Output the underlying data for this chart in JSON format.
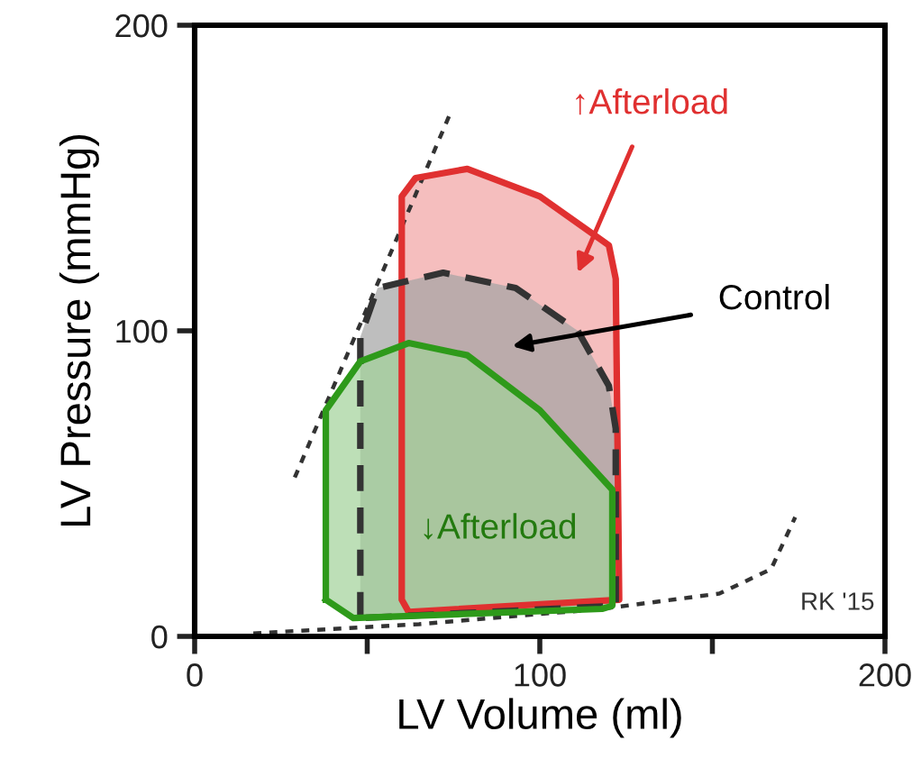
{
  "chart_data": {
    "type": "area",
    "xlabel": "LV Volume (ml)",
    "ylabel": "LV Pressure (mmHg)",
    "xlim": [
      0,
      200
    ],
    "ylim": [
      0,
      200
    ],
    "xticks": [
      0,
      {
        "value": 50,
        "label": null
      },
      100,
      {
        "value": 150,
        "label": null
      },
      200
    ],
    "yticks": [
      0,
      100,
      200
    ],
    "grid": false,
    "series": [
      {
        "type": "line",
        "color": "#333333",
        "line_style": "dotted",
        "x": [
          29,
          74
        ],
        "values": [
          52,
          171
        ]
      },
      {
        "type": "line",
        "color": "#333333",
        "line_style": "dotted",
        "x": [
          17,
          65,
          118,
          152,
          167,
          174
        ],
        "values": [
          1,
          4,
          9,
          14,
          22,
          39
        ]
      },
      {
        "name": "↑Afterload",
        "color": "#e03030",
        "line_style": "solid",
        "x": [
          62,
          60,
          60,
          64,
          79,
          100,
          120,
          122,
          123,
          62
        ],
        "values": [
          8,
          12,
          144,
          150,
          153,
          144,
          128,
          117,
          12,
          8
        ]
      },
      {
        "name": "Control",
        "color": "#333333",
        "line_style": "dashed",
        "x": [
          48,
          48,
          53,
          72,
          93,
          111,
          120,
          122,
          122,
          48
        ],
        "values": [
          6,
          98,
          114,
          119,
          114,
          100,
          82,
          68,
          10,
          6
        ]
      },
      {
        "name": "↓Afterload",
        "color": "#2e9a1a",
        "line_style": "solid",
        "x": [
          38,
          38,
          48,
          62,
          79,
          100,
          121,
          121,
          118,
          46,
          38
        ],
        "values": [
          12,
          74,
          90,
          96,
          92,
          74,
          48,
          10,
          9,
          6,
          12
        ]
      }
    ],
    "annotations": [
      "RK '15"
    ]
  }
}
